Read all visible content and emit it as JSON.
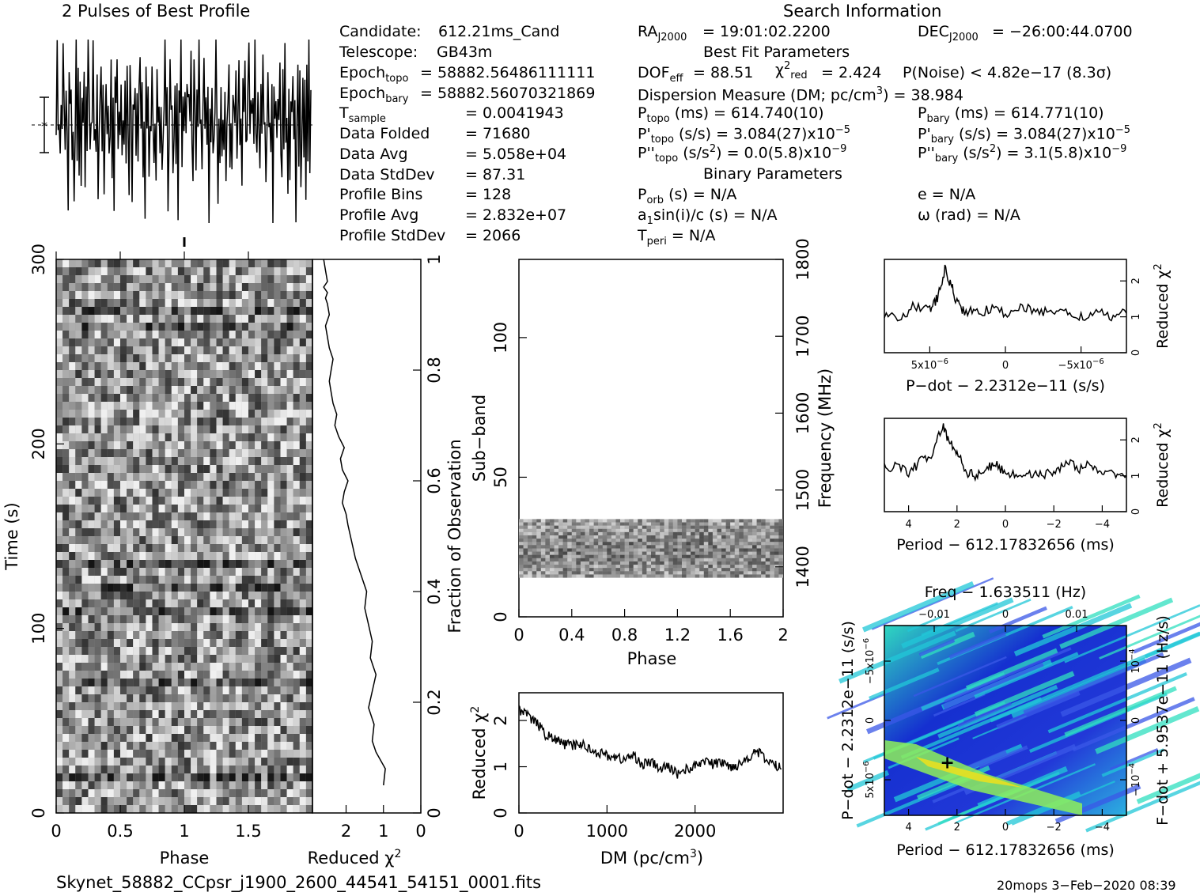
{
  "header": {
    "profile_title": "2 Pulses of Best Profile",
    "search_title": "Search Information"
  },
  "info": {
    "candidate_label": "Candidate:",
    "candidate": "612.21ms_Cand",
    "telescope_label": "Telescope:",
    "telescope": "GB43m",
    "epoch_topo": "= 58882.56486111111",
    "epoch_bary": "= 58882.56070321869",
    "t_sample": "= 0.0041943",
    "data_folded_label": "Data Folded",
    "data_folded": "= 71680",
    "data_avg_label": "Data Avg",
    "data_avg": "= 5.058e+04",
    "data_stddev_label": "Data StdDev",
    "data_stddev": "= 87.31",
    "profile_bins_label": "Profile Bins",
    "profile_bins": "= 128",
    "profile_avg_label": "Profile Avg",
    "profile_avg": "= 2.832e+07",
    "profile_stddev_label": "Profile StdDev",
    "profile_stddev": "= 2066"
  },
  "search": {
    "ra": "= 19:01:02.2200",
    "dec": "= −26:00:44.0700",
    "best_fit_title": "Best Fit Parameters",
    "dof": "DOF",
    "dof_value": "= 88.51",
    "chi2_value": "= 2.424",
    "p_noise": "P(Noise) < 4.82e−17   (8.3σ)",
    "dm_line": "Dispersion Measure (DM; pc/cm",
    "dm_value": ") = 38.984",
    "p_topo": "(ms) =  614.740(10)",
    "p_bary": "(ms) =  614.771(10)",
    "pd_topo": "(s/s) =  3.084(27)x10",
    "pd_bary": "(s/s) =  3.084(27)x10",
    "pdd_topo": "(s/s",
    "pdd_topo_val": ") = 0.0(5.8)x10",
    "pdd_bary_val": ") =  3.1(5.8)x10",
    "binary_title": "Binary Parameters",
    "p_orb": "(s) = N/A",
    "a1": "sin(i)/c (s) = N/A",
    "t_peri": "= N/A",
    "e": "e = N/A",
    "omega": "ω (rad) = N/A"
  },
  "footer": {
    "filename": "Skynet_58882_CCpsr_j1900_2600_44541_54151_0001.fits",
    "stamp": "20mops  3−Feb−2020 08:39"
  },
  "chart_data": [
    {
      "type": "line",
      "name": "profile",
      "title": "2 Pulses of Best Profile",
      "xlim": [
        0,
        2
      ],
      "values": [
        0.62,
        0.88,
        0.35,
        0.7,
        0.55,
        0.8,
        0.42,
        0.95,
        0.5,
        0.3,
        0.78,
        0.6,
        0.15,
        0.72,
        0.48,
        0.85,
        0.4,
        0.66,
        0.2,
        0.58,
        0.9,
        0.44,
        0.7,
        0.35,
        0.62,
        0.05,
        0.75,
        0.5,
        0.82,
        0.3,
        0.6,
        0.45,
        0.98,
        0.55,
        0.25,
        0.7,
        0.4,
        0.86,
        0.5,
        0.65,
        0.32,
        0.78,
        0.22,
        0.6,
        0.52,
        0.92,
        0.38,
        0.68,
        0.12,
        0.55,
        0.8,
        0.45,
        0.7,
        0.3,
        0.6,
        0.88,
        0.4,
        0.66,
        0.18,
        0.74,
        0.5,
        0.95,
        0.36,
        0.62
      ]
    },
    {
      "type": "heatmap",
      "name": "time-phase",
      "xlabel": "Phase",
      "ylabel": "Time (s)",
      "y2label": "Fraction of Observation",
      "xlim": [
        0,
        2
      ],
      "ylim": [
        0,
        300
      ],
      "xticks": [
        "0",
        "0.5",
        "1",
        "1.5"
      ],
      "yticks": [
        "0",
        "100",
        "200",
        "300"
      ],
      "y2ticks": [
        "0",
        "0.2",
        "0.4",
        "0.6",
        "0.8",
        "1"
      ]
    },
    {
      "type": "line",
      "name": "time-reduced-chi2",
      "xlabel": "Reduced χ",
      "xlim": [
        2.9,
        0
      ],
      "xticks": [
        "2",
        "1",
        "0"
      ],
      "x": [
        1.0,
        0.95,
        1.2,
        1.3,
        1.25,
        1.4,
        1.3,
        1.2,
        1.35,
        1.3,
        1.4,
        1.5,
        1.45,
        1.6,
        1.75,
        1.85,
        1.95,
        2.0,
        2.1,
        2.05,
        1.95,
        2.1,
        2.15,
        2.05,
        2.2,
        2.3,
        2.25,
        2.35,
        2.4,
        2.45,
        2.4,
        2.35,
        2.45,
        2.5,
        2.55,
        2.45,
        2.5,
        2.55,
        2.5,
        2.6,
        2.5,
        2.55,
        2.6
      ],
      "y": [
        0.05,
        0.08,
        0.11,
        0.13,
        0.16,
        0.19,
        0.22,
        0.25,
        0.28,
        0.31,
        0.34,
        0.37,
        0.4,
        0.43,
        0.46,
        0.49,
        0.52,
        0.54,
        0.56,
        0.58,
        0.6,
        0.62,
        0.64,
        0.66,
        0.68,
        0.7,
        0.72,
        0.74,
        0.76,
        0.78,
        0.8,
        0.82,
        0.84,
        0.86,
        0.88,
        0.9,
        0.92,
        0.93,
        0.94,
        0.95,
        0.96,
        0.98,
        1.0
      ]
    },
    {
      "type": "heatmap",
      "name": "subband-phase",
      "xlabel": "Phase",
      "ylabel": "Sub−band",
      "y2label": "Frequency (MHz)",
      "xlim": [
        0,
        2
      ],
      "ylim": [
        0,
        128
      ],
      "xticks": [
        "0",
        "0.4",
        "0.8",
        "1.2",
        "1.6",
        "2"
      ],
      "yticks": [
        "0",
        "50",
        "100"
      ],
      "y2ticks": [
        "1400",
        "1500",
        "1600",
        "1700",
        "1800"
      ],
      "band_subbands": [
        14,
        35
      ]
    },
    {
      "type": "line",
      "name": "dm-chi2",
      "xlabel": "DM (pc/cm",
      "ylabel": "Reduced χ",
      "xlim": [
        0,
        3000
      ],
      "ylim": [
        0,
        2.6
      ],
      "xticks": [
        "0",
        "1000",
        "2000"
      ],
      "yticks": [
        "0",
        "1",
        "2"
      ],
      "x": [
        0,
        100,
        200,
        300,
        400,
        500,
        600,
        700,
        800,
        900,
        1000,
        1100,
        1200,
        1300,
        1400,
        1500,
        1600,
        1700,
        1800,
        1900,
        2000,
        2100,
        2200,
        2300,
        2400,
        2500,
        2600,
        2700,
        2800,
        2900,
        2980
      ],
      "y": [
        2.25,
        2.1,
        1.95,
        1.7,
        1.6,
        1.5,
        1.45,
        1.5,
        1.4,
        1.3,
        1.25,
        1.2,
        1.15,
        1.25,
        1.05,
        1.1,
        0.95,
        1.0,
        0.85,
        0.95,
        1.0,
        1.15,
        1.05,
        1.1,
        1.0,
        1.05,
        1.2,
        1.35,
        1.15,
        1.05,
        0.95
      ]
    },
    {
      "type": "line",
      "name": "pdot-chi2",
      "xlabel": "P−dot − 2.2312e−11 (s/s)",
      "ylabel": "Reduced χ",
      "xlim": [
        8e-06,
        -8e-06
      ],
      "ylim": [
        0,
        2.6
      ],
      "xticks": [
        "5x10",
        "0",
        "−5x10"
      ],
      "yticks": [
        "0",
        "1",
        "2"
      ],
      "x": [
        8e-06,
        7e-06,
        6e-06,
        5e-06,
        4.5e-06,
        4e-06,
        3.6e-06,
        3.2e-06,
        2.8e-06,
        2e-06,
        1e-06,
        0,
        -1e-06,
        -2e-06,
        -3e-06,
        -4e-06,
        -5e-06,
        -6e-06,
        -7e-06,
        -8e-06
      ],
      "y": [
        1.1,
        1.0,
        1.3,
        1.2,
        1.5,
        2.3,
        1.9,
        1.4,
        1.2,
        1.1,
        1.2,
        1.1,
        1.3,
        1.1,
        1.2,
        1.1,
        1.0,
        1.1,
        1.0,
        1.1
      ]
    },
    {
      "type": "line",
      "name": "period-chi2",
      "xlabel": "Period − 612.17832656 (ms)",
      "ylabel": "Reduced χ",
      "xlim": [
        5,
        -5
      ],
      "ylim": [
        0,
        2.6
      ],
      "xticks": [
        "4",
        "2",
        "0",
        "−2",
        "−4"
      ],
      "yticks": [
        "0",
        "1",
        "2"
      ],
      "x": [
        5,
        4.5,
        4,
        3.5,
        3,
        2.6,
        2.3,
        2,
        1.6,
        1.2,
        0.8,
        0.4,
        0,
        -0.5,
        -1,
        -1.5,
        -2,
        -2.5,
        -3,
        -3.5,
        -4,
        -4.5,
        -5
      ],
      "y": [
        1.2,
        1.3,
        1.1,
        1.4,
        1.6,
        2.4,
        1.9,
        1.7,
        1.1,
        1.0,
        1.2,
        1.3,
        1.1,
        1.0,
        1.1,
        1.0,
        1.1,
        1.4,
        1.2,
        1.3,
        1.0,
        1.1,
        1.0
      ]
    },
    {
      "type": "heatmap",
      "name": "period-pdot",
      "title": "Freq − 1.633511 (Hz)",
      "xlabel": "Period − 612.17832656 (ms)",
      "ylabel": "P−dot − 2.2312e−11 (s/s)",
      "y2label": "F−dot + 5.9537e−11 (Hz/s)",
      "xlim": [
        5,
        -5
      ],
      "xticks": [
        "4",
        "2",
        "0",
        "−2",
        "−4"
      ],
      "x2ticks": [
        "−0.01",
        "0",
        "0.01"
      ],
      "yticks": [
        "5x10",
        "0",
        "−5x10"
      ],
      "y2ticks": [
        "−10",
        "0",
        "10"
      ],
      "best_fit": {
        "period": 2.4,
        "pdot": 3.5e-06
      }
    }
  ]
}
